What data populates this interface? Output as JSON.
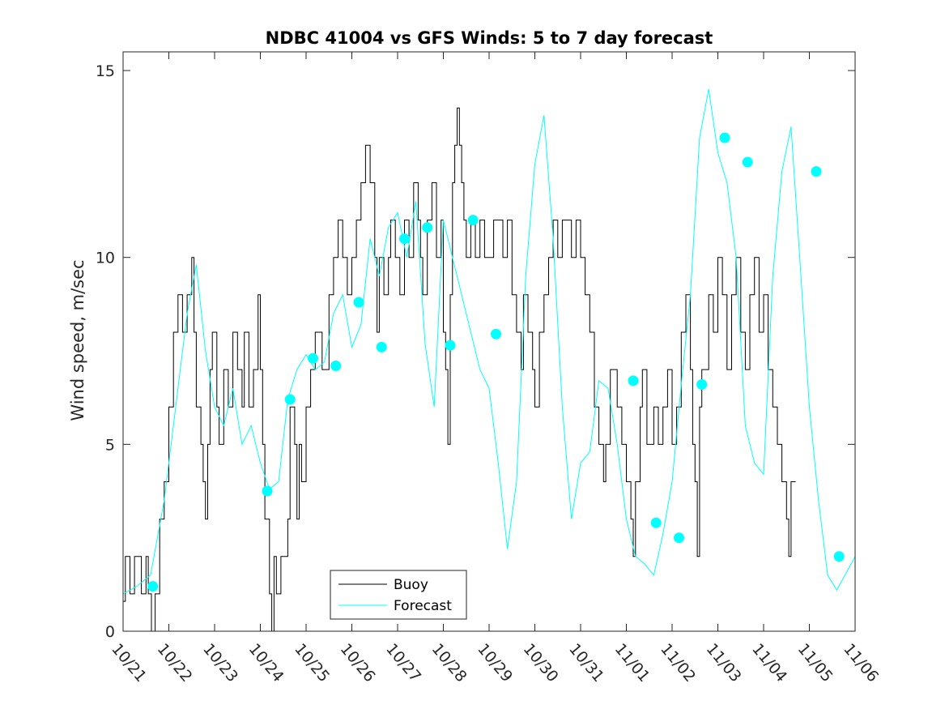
{
  "chart_data": {
    "type": "line",
    "title": "NDBC 41004 vs GFS Winds: 5 to 7 day forecast",
    "xlabel": "",
    "ylabel": "Wind speed, m/sec",
    "xlim": [
      0,
      16
    ],
    "ylim": [
      0,
      15.5
    ],
    "x_ticks": [
      {
        "value": 0,
        "label": "10/21"
      },
      {
        "value": 1,
        "label": "10/22"
      },
      {
        "value": 2,
        "label": "10/23"
      },
      {
        "value": 3,
        "label": "10/24"
      },
      {
        "value": 4,
        "label": "10/25"
      },
      {
        "value": 5,
        "label": "10/26"
      },
      {
        "value": 6,
        "label": "10/27"
      },
      {
        "value": 7,
        "label": "10/28"
      },
      {
        "value": 8,
        "label": "10/29"
      },
      {
        "value": 9,
        "label": "10/30"
      },
      {
        "value": 10,
        "label": "10/31"
      },
      {
        "value": 11,
        "label": "11/01"
      },
      {
        "value": 12,
        "label": "11/02"
      },
      {
        "value": 13,
        "label": "11/03"
      },
      {
        "value": 14,
        "label": "11/04"
      },
      {
        "value": 15,
        "label": "11/05"
      },
      {
        "value": 16,
        "label": "11/06"
      }
    ],
    "y_ticks": [
      {
        "value": 0,
        "label": "0"
      },
      {
        "value": 5,
        "label": "5"
      },
      {
        "value": 10,
        "label": "10"
      },
      {
        "value": 15,
        "label": "15"
      }
    ],
    "legend": {
      "position": "bottom-center",
      "entries": [
        {
          "label": "Buoy",
          "color": "#000000"
        },
        {
          "label": "Forecast",
          "color": "#00ffff"
        }
      ]
    },
    "colors": {
      "buoy": "#000000",
      "forecast": "#00ffff",
      "axes": "#262626"
    },
    "series": [
      {
        "name": "Buoy",
        "kind": "step",
        "points": [
          [
            0,
            0.8
          ],
          [
            0.05,
            2
          ],
          [
            0.15,
            1
          ],
          [
            0.25,
            2
          ],
          [
            0.4,
            1
          ],
          [
            0.5,
            2
          ],
          [
            0.55,
            1
          ],
          [
            0.62,
            0
          ],
          [
            0.7,
            1
          ],
          [
            0.8,
            3
          ],
          [
            0.9,
            4
          ],
          [
            1.0,
            6
          ],
          [
            1.1,
            8
          ],
          [
            1.2,
            9
          ],
          [
            1.3,
            8
          ],
          [
            1.4,
            9
          ],
          [
            1.5,
            10
          ],
          [
            1.55,
            8
          ],
          [
            1.6,
            6
          ],
          [
            1.7,
            5
          ],
          [
            1.75,
            4
          ],
          [
            1.8,
            3
          ],
          [
            1.85,
            5
          ],
          [
            1.9,
            7
          ],
          [
            1.95,
            8
          ],
          [
            2.05,
            6
          ],
          [
            2.1,
            5
          ],
          [
            2.2,
            7
          ],
          [
            2.3,
            6
          ],
          [
            2.4,
            8
          ],
          [
            2.5,
            7
          ],
          [
            2.6,
            6
          ],
          [
            2.65,
            8
          ],
          [
            2.75,
            6
          ],
          [
            2.85,
            7
          ],
          [
            2.95,
            9
          ],
          [
            3.0,
            7
          ],
          [
            3.05,
            5
          ],
          [
            3.1,
            3
          ],
          [
            3.2,
            1
          ],
          [
            3.25,
            0
          ],
          [
            3.3,
            2
          ],
          [
            3.35,
            1
          ],
          [
            3.45,
            2
          ],
          [
            3.6,
            3
          ],
          [
            3.65,
            6
          ],
          [
            3.75,
            5
          ],
          [
            3.8,
            3
          ],
          [
            3.85,
            5
          ],
          [
            3.9,
            4
          ],
          [
            4.0,
            6
          ],
          [
            4.1,
            7
          ],
          [
            4.2,
            8
          ],
          [
            4.35,
            7
          ],
          [
            4.5,
            9
          ],
          [
            4.6,
            10
          ],
          [
            4.7,
            11
          ],
          [
            4.8,
            10
          ],
          [
            4.9,
            9
          ],
          [
            5.0,
            10
          ],
          [
            5.1,
            11
          ],
          [
            5.2,
            12
          ],
          [
            5.3,
            13
          ],
          [
            5.4,
            12
          ],
          [
            5.5,
            10
          ],
          [
            5.55,
            8
          ],
          [
            5.6,
            10
          ],
          [
            5.7,
            9
          ],
          [
            5.8,
            10
          ],
          [
            5.85,
            11
          ],
          [
            5.95,
            10
          ],
          [
            6.05,
            9
          ],
          [
            6.15,
            11
          ],
          [
            6.25,
            10
          ],
          [
            6.35,
            12
          ],
          [
            6.45,
            11
          ],
          [
            6.5,
            10
          ],
          [
            6.55,
            9
          ],
          [
            6.65,
            11
          ],
          [
            6.75,
            12
          ],
          [
            6.85,
            10
          ],
          [
            6.95,
            11
          ],
          [
            7.0,
            8
          ],
          [
            7.05,
            7
          ],
          [
            7.1,
            5
          ],
          [
            7.15,
            9
          ],
          [
            7.2,
            12
          ],
          [
            7.25,
            13
          ],
          [
            7.3,
            14
          ],
          [
            7.35,
            13
          ],
          [
            7.4,
            12
          ],
          [
            7.45,
            11
          ],
          [
            7.5,
            10
          ],
          [
            7.6,
            11
          ],
          [
            7.7,
            10
          ],
          [
            7.8,
            11
          ],
          [
            7.9,
            10
          ],
          [
            8.1,
            11
          ],
          [
            8.3,
            10
          ],
          [
            8.4,
            11
          ],
          [
            8.5,
            9
          ],
          [
            8.6,
            8
          ],
          [
            8.7,
            7
          ],
          [
            8.75,
            9
          ],
          [
            8.85,
            8
          ],
          [
            8.95,
            7
          ],
          [
            9.0,
            6
          ],
          [
            9.1,
            8
          ],
          [
            9.2,
            9
          ],
          [
            9.3,
            10
          ],
          [
            9.4,
            11
          ],
          [
            9.5,
            10
          ],
          [
            9.6,
            11
          ],
          [
            9.8,
            10
          ],
          [
            9.9,
            11
          ],
          [
            10.0,
            10
          ],
          [
            10.1,
            9
          ],
          [
            10.2,
            8
          ],
          [
            10.3,
            6
          ],
          [
            10.4,
            5
          ],
          [
            10.5,
            4
          ],
          [
            10.55,
            5
          ],
          [
            10.65,
            7
          ],
          [
            10.8,
            6
          ],
          [
            10.9,
            5
          ],
          [
            11.0,
            4
          ],
          [
            11.1,
            3
          ],
          [
            11.15,
            2
          ],
          [
            11.2,
            4
          ],
          [
            11.3,
            6
          ],
          [
            11.35,
            7
          ],
          [
            11.45,
            5
          ],
          [
            11.6,
            6
          ],
          [
            11.7,
            5
          ],
          [
            11.8,
            6
          ],
          [
            11.9,
            7
          ],
          [
            12.0,
            5
          ],
          [
            12.1,
            6
          ],
          [
            12.2,
            8
          ],
          [
            12.3,
            9
          ],
          [
            12.4,
            7
          ],
          [
            12.45,
            5
          ],
          [
            12.5,
            4
          ],
          [
            12.55,
            2
          ],
          [
            12.6,
            6
          ],
          [
            12.65,
            7
          ],
          [
            12.8,
            9
          ],
          [
            12.9,
            8
          ],
          [
            13.0,
            10
          ],
          [
            13.1,
            9
          ],
          [
            13.2,
            7
          ],
          [
            13.3,
            9
          ],
          [
            13.4,
            10
          ],
          [
            13.5,
            8
          ],
          [
            13.6,
            7
          ],
          [
            13.7,
            9
          ],
          [
            13.8,
            10
          ],
          [
            13.9,
            8
          ],
          [
            14.0,
            9
          ],
          [
            14.1,
            7
          ],
          [
            14.2,
            6
          ],
          [
            14.3,
            5
          ],
          [
            14.4,
            4
          ],
          [
            14.5,
            3
          ],
          [
            14.55,
            2
          ],
          [
            14.6,
            4
          ],
          [
            14.7,
            4
          ]
        ]
      },
      {
        "name": "Forecast",
        "kind": "line",
        "points": [
          [
            0.0,
            1.0
          ],
          [
            0.3,
            1.2
          ],
          [
            0.6,
            1.5
          ],
          [
            0.9,
            3.5
          ],
          [
            1.2,
            6.5
          ],
          [
            1.4,
            8.5
          ],
          [
            1.6,
            9.8
          ],
          [
            1.8,
            7.5
          ],
          [
            2.0,
            6.0
          ],
          [
            2.2,
            5.5
          ],
          [
            2.4,
            6.5
          ],
          [
            2.6,
            5.0
          ],
          [
            2.8,
            5.5
          ],
          [
            3.0,
            4.5
          ],
          [
            3.2,
            3.8
          ],
          [
            3.4,
            4.0
          ],
          [
            3.6,
            6.2
          ],
          [
            3.8,
            7.0
          ],
          [
            4.0,
            7.4
          ],
          [
            4.2,
            7.0
          ],
          [
            4.4,
            7.2
          ],
          [
            4.6,
            8.5
          ],
          [
            4.8,
            9.0
          ],
          [
            5.0,
            7.6
          ],
          [
            5.2,
            8.2
          ],
          [
            5.4,
            10.5
          ],
          [
            5.6,
            9.5
          ],
          [
            5.8,
            10.8
          ],
          [
            6.0,
            11.2
          ],
          [
            6.2,
            10.0
          ],
          [
            6.4,
            11.5
          ],
          [
            6.6,
            7.7
          ],
          [
            6.8,
            6.0
          ],
          [
            7.0,
            11.0
          ],
          [
            7.2,
            10.0
          ],
          [
            7.4,
            9.0
          ],
          [
            7.6,
            8.0
          ],
          [
            7.8,
            7.0
          ],
          [
            8.0,
            6.5
          ],
          [
            8.2,
            4.5
          ],
          [
            8.4,
            2.2
          ],
          [
            8.6,
            4.0
          ],
          [
            8.8,
            9.5
          ],
          [
            9.0,
            12.5
          ],
          [
            9.2,
            13.8
          ],
          [
            9.4,
            10.5
          ],
          [
            9.6,
            6.0
          ],
          [
            9.8,
            3.0
          ],
          [
            10.0,
            4.5
          ],
          [
            10.2,
            4.8
          ],
          [
            10.4,
            6.7
          ],
          [
            10.6,
            6.5
          ],
          [
            10.8,
            5.0
          ],
          [
            11.0,
            3.0
          ],
          [
            11.2,
            2.0
          ],
          [
            11.4,
            1.8
          ],
          [
            11.6,
            1.5
          ],
          [
            11.8,
            2.6
          ],
          [
            12.0,
            4.0
          ],
          [
            12.2,
            6.6
          ],
          [
            12.4,
            9.0
          ],
          [
            12.6,
            13.2
          ],
          [
            12.8,
            14.5
          ],
          [
            13.0,
            12.8
          ],
          [
            13.2,
            12.0
          ],
          [
            13.4,
            10.0
          ],
          [
            13.6,
            5.5
          ],
          [
            13.8,
            4.5
          ],
          [
            14.0,
            4.2
          ],
          [
            14.2,
            9.5
          ],
          [
            14.4,
            12.3
          ],
          [
            14.6,
            13.5
          ],
          [
            14.8,
            9.8
          ],
          [
            15.0,
            6.0
          ],
          [
            15.2,
            3.5
          ],
          [
            15.4,
            1.5
          ],
          [
            15.6,
            1.1
          ],
          [
            16.0,
            2.0
          ]
        ]
      }
    ],
    "forecast_points": [
      [
        0.65,
        1.2
      ],
      [
        3.15,
        3.75
      ],
      [
        3.65,
        6.2
      ],
      [
        4.15,
        7.3
      ],
      [
        4.65,
        7.1
      ],
      [
        5.15,
        8.8
      ],
      [
        5.65,
        7.6
      ],
      [
        6.15,
        10.5
      ],
      [
        6.65,
        10.8
      ],
      [
        7.15,
        7.65
      ],
      [
        7.65,
        11.0
      ],
      [
        8.15,
        7.95
      ],
      [
        11.15,
        6.7
      ],
      [
        11.65,
        2.9
      ],
      [
        12.15,
        2.5
      ],
      [
        12.65,
        6.6
      ],
      [
        13.15,
        13.2
      ],
      [
        13.65,
        12.55
      ],
      [
        15.15,
        12.3
      ],
      [
        15.65,
        2.0
      ]
    ]
  }
}
